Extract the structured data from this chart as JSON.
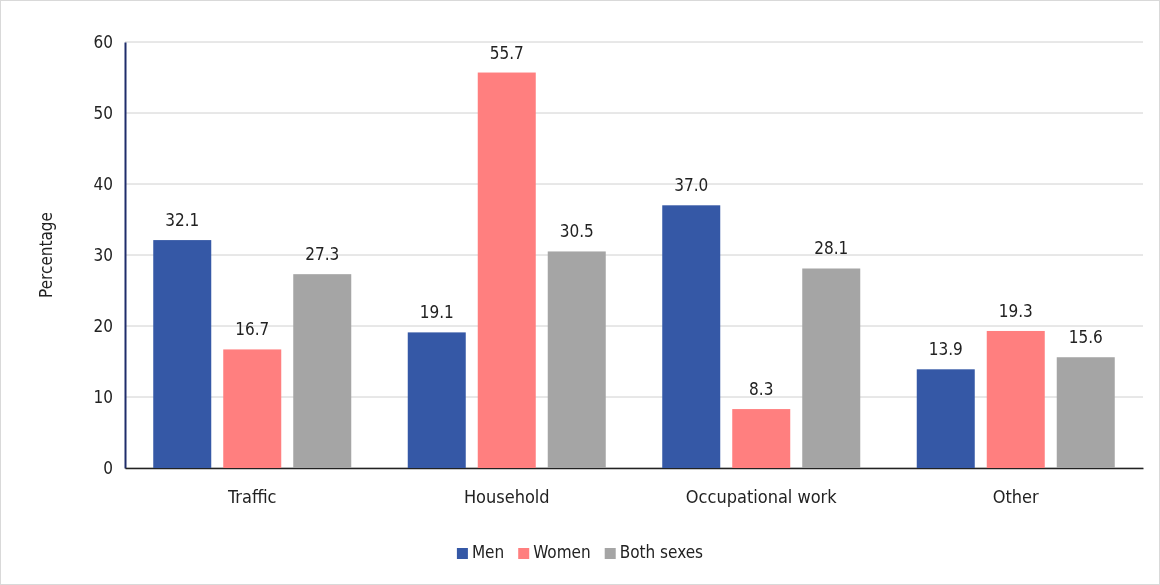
{
  "chart_data": {
    "type": "bar",
    "ylabel": "Percentage",
    "categories": [
      "Traffic",
      "Household",
      "Occupational work",
      "Other"
    ],
    "series": [
      {
        "name": "Men",
        "color": "#3558a6",
        "values": [
          32.1,
          19.1,
          37.0,
          13.9
        ]
      },
      {
        "name": "Women",
        "color": "#ff7f7f",
        "values": [
          16.7,
          55.7,
          8.3,
          19.3
        ]
      },
      {
        "name": "Both sexes",
        "color": "#a5a5a5",
        "values": [
          27.3,
          30.5,
          28.1,
          15.6
        ]
      }
    ],
    "value_labels": [
      [
        "32.1",
        "19.1",
        "37.0",
        "13.9"
      ],
      [
        "16.7",
        "55.7",
        "8.3",
        "19.3"
      ],
      [
        "27.3",
        "30.5",
        "28.1",
        "15.6"
      ]
    ],
    "ylim": [
      0,
      60
    ],
    "yticks": [
      0,
      10,
      20,
      30,
      40,
      50,
      60
    ],
    "grid": "y",
    "legend": "bottom"
  }
}
